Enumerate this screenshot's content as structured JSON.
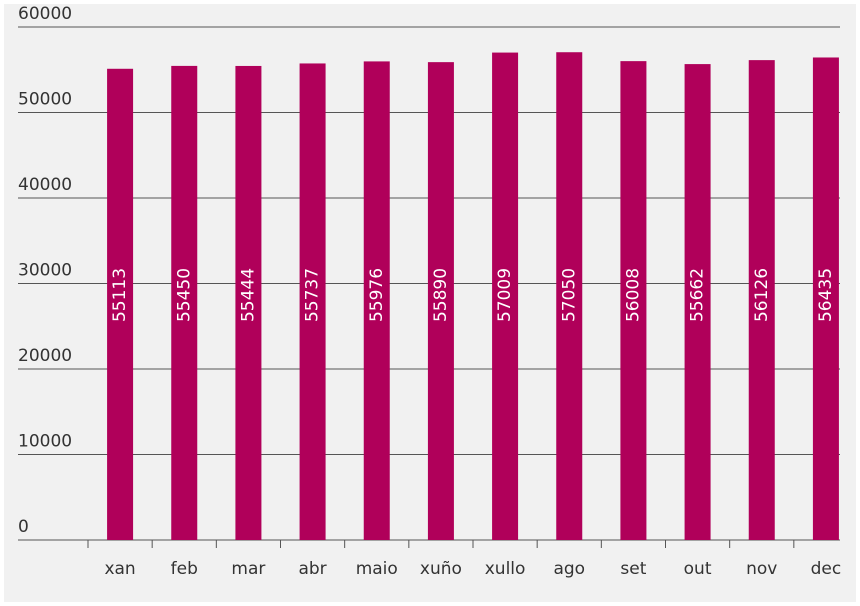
{
  "chart_data": {
    "type": "bar",
    "categories": [
      "xan",
      "feb",
      "mar",
      "abr",
      "maio",
      "xuño",
      "xullo",
      "ago",
      "set",
      "out",
      "nov",
      "dec"
    ],
    "values": [
      55113,
      55450,
      55444,
      55737,
      55976,
      55890,
      57009,
      57050,
      56008,
      55662,
      56126,
      56435
    ],
    "color": "#b0005a",
    "ylim": [
      0,
      60000
    ],
    "yticks": [
      0,
      10000,
      20000,
      30000,
      40000,
      50000,
      60000
    ],
    "grid": true
  }
}
